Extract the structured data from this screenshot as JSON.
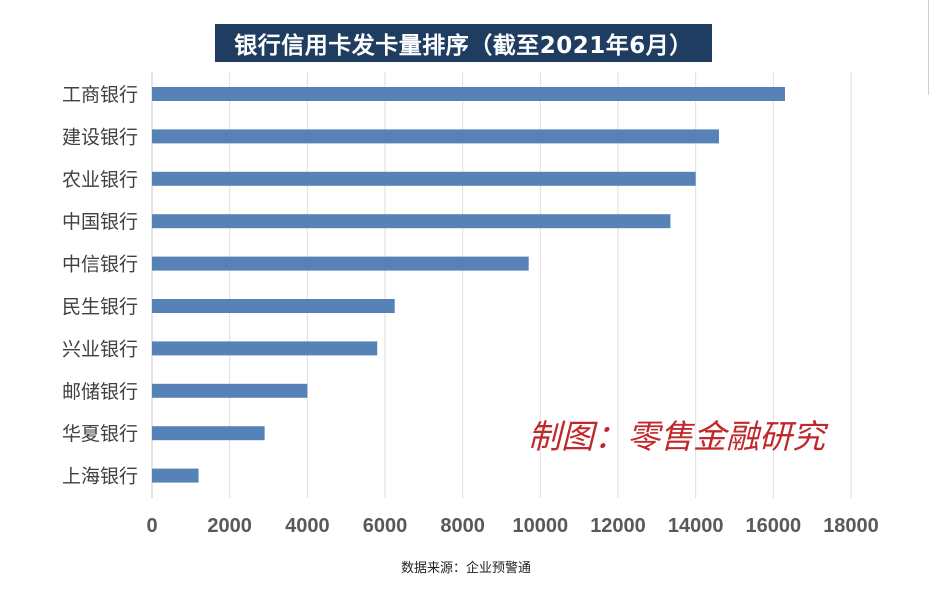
{
  "chart_data": {
    "type": "bar",
    "orientation": "horizontal",
    "title": "银行信用卡发卡量排序（截至2021年6月）",
    "categories": [
      "工商银行",
      "建设银行",
      "农业银行",
      "中国银行",
      "中信银行",
      "民生银行",
      "兴业银行",
      "邮储银行",
      "华夏银行",
      "上海银行"
    ],
    "values": [
      16300,
      14600,
      14000,
      13350,
      9700,
      6250,
      5800,
      4000,
      2900,
      1200
    ],
    "xlim": [
      0,
      18000
    ],
    "xticks": [
      "0",
      "2000",
      "4000",
      "6000",
      "8000",
      "10000",
      "12000",
      "14000",
      "16000",
      "18000"
    ],
    "grid": "vertical",
    "bar_color": "#5682b8",
    "title_bg_color": "#1f3d60"
  },
  "watermark": "制图：零售金融研究",
  "source_note": "数据来源：企业预警通"
}
